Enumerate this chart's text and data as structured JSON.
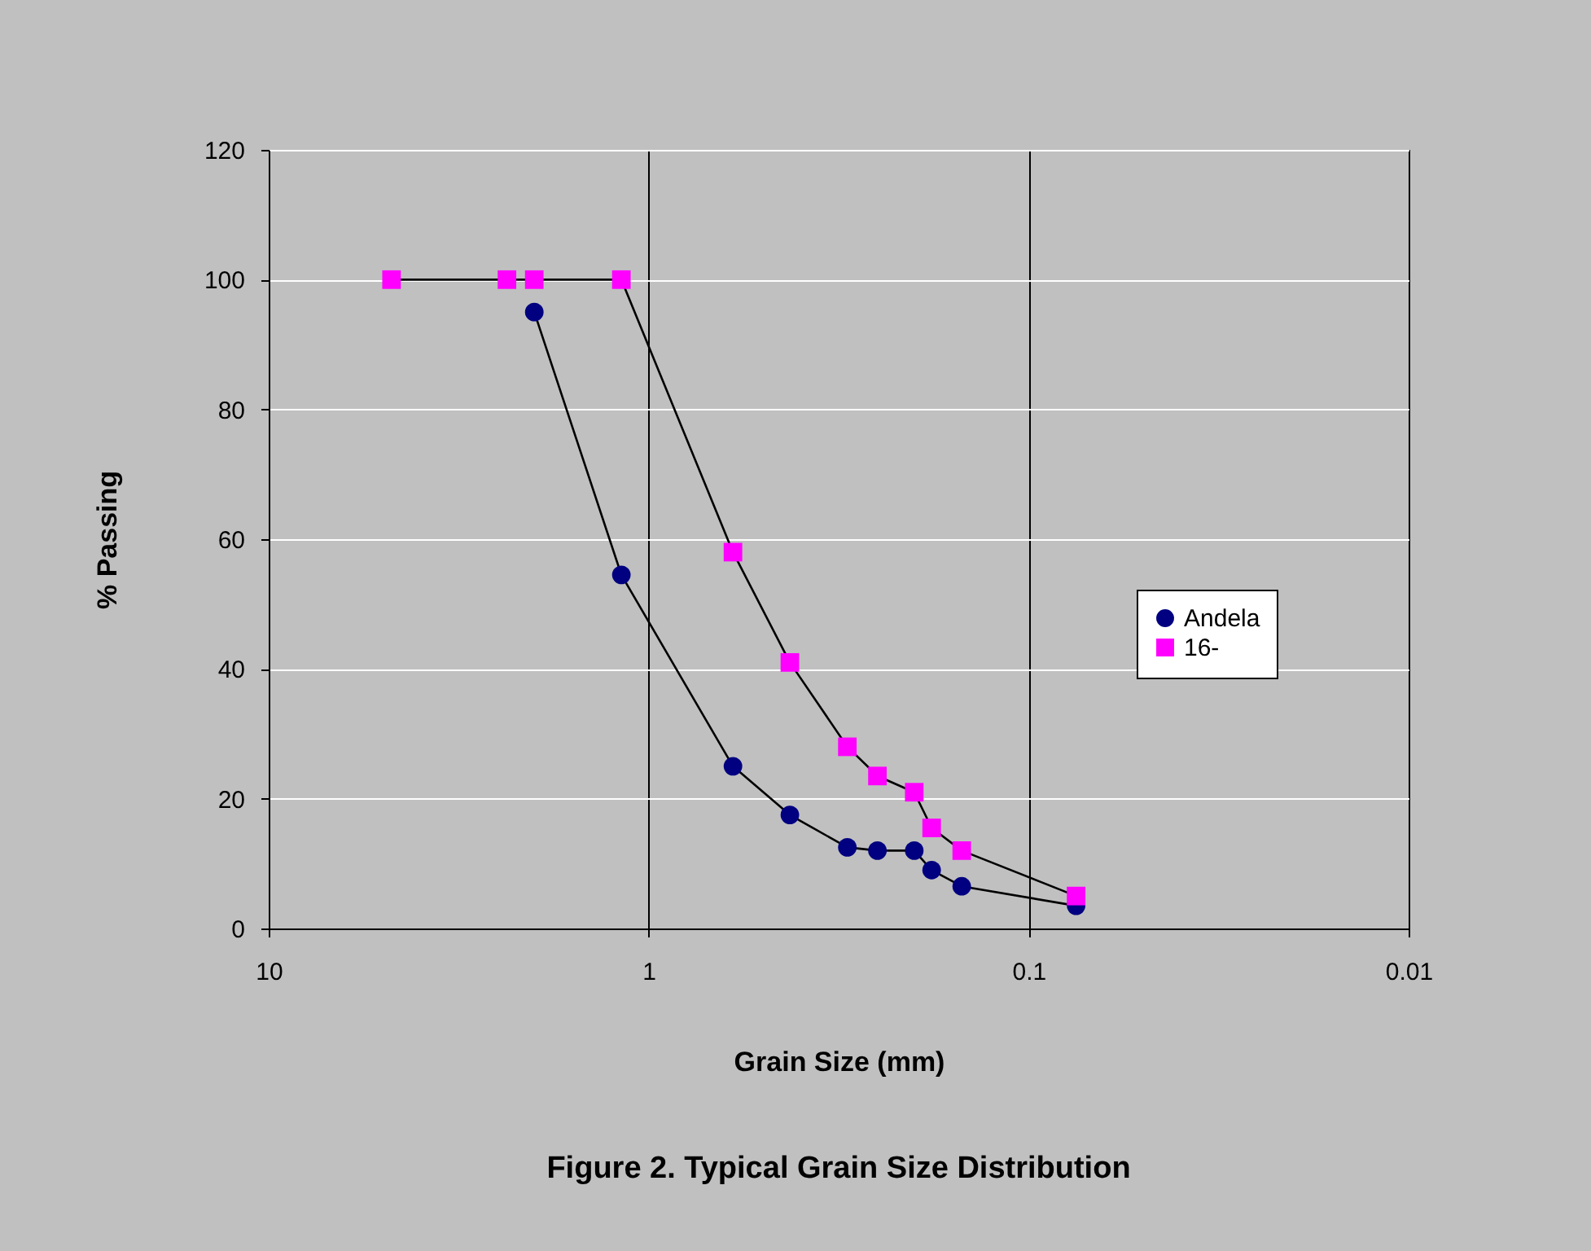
{
  "chart_data": {
    "type": "line",
    "title": "Figure 2.  Typical Grain Size Distribution",
    "xlabel": "Grain Size (mm)",
    "ylabel": "% Passing",
    "log": "x",
    "xlim": [
      10,
      0.01
    ],
    "xticks": [
      10,
      1,
      0.1,
      0.01
    ],
    "ylim": [
      0,
      120
    ],
    "yticks": [
      0,
      20,
      40,
      60,
      80,
      100,
      120
    ],
    "grid": true,
    "legend": "right",
    "series": [
      {
        "name": "Andela",
        "color": "#000080",
        "marker": "circle",
        "x": [
          2.0,
          1.18,
          0.6,
          0.425,
          0.3,
          0.25,
          0.2,
          0.18,
          0.15,
          0.075
        ],
        "values": [
          95,
          54.5,
          25,
          17.5,
          12.5,
          12,
          12,
          9,
          6.5,
          3.5
        ]
      },
      {
        "name": "16-",
        "color": "#ff00ff",
        "marker": "square",
        "x": [
          4.75,
          2.36,
          2.0,
          1.18,
          0.6,
          0.425,
          0.3,
          0.25,
          0.2,
          0.18,
          0.15,
          0.075
        ],
        "values": [
          100,
          100,
          100,
          100,
          58,
          41,
          28,
          23.5,
          21,
          15.5,
          12,
          5
        ]
      }
    ]
  }
}
